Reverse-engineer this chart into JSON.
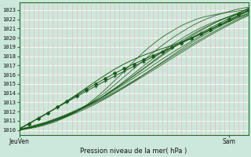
{
  "title": "Pression niveau de la mer( hPa )",
  "ylabel_vals": [
    1010,
    1011,
    1012,
    1013,
    1014,
    1015,
    1016,
    1017,
    1018,
    1019,
    1020,
    1021,
    1022,
    1023
  ],
  "ylim": [
    1009.5,
    1023.8
  ],
  "xlim": [
    0,
    48
  ],
  "xtick_positions": [
    0,
    44
  ],
  "xtick_labels": [
    "JeuVen",
    "Sam"
  ],
  "bg_color": "#cce8dc",
  "grid_color_major": "#ffffff",
  "grid_color_minor": "#f5b8b8",
  "line_color": "#1a5c1a",
  "n_hours": 48,
  "fig_w": 3.2,
  "fig_h": 2.0,
  "dpi": 100
}
